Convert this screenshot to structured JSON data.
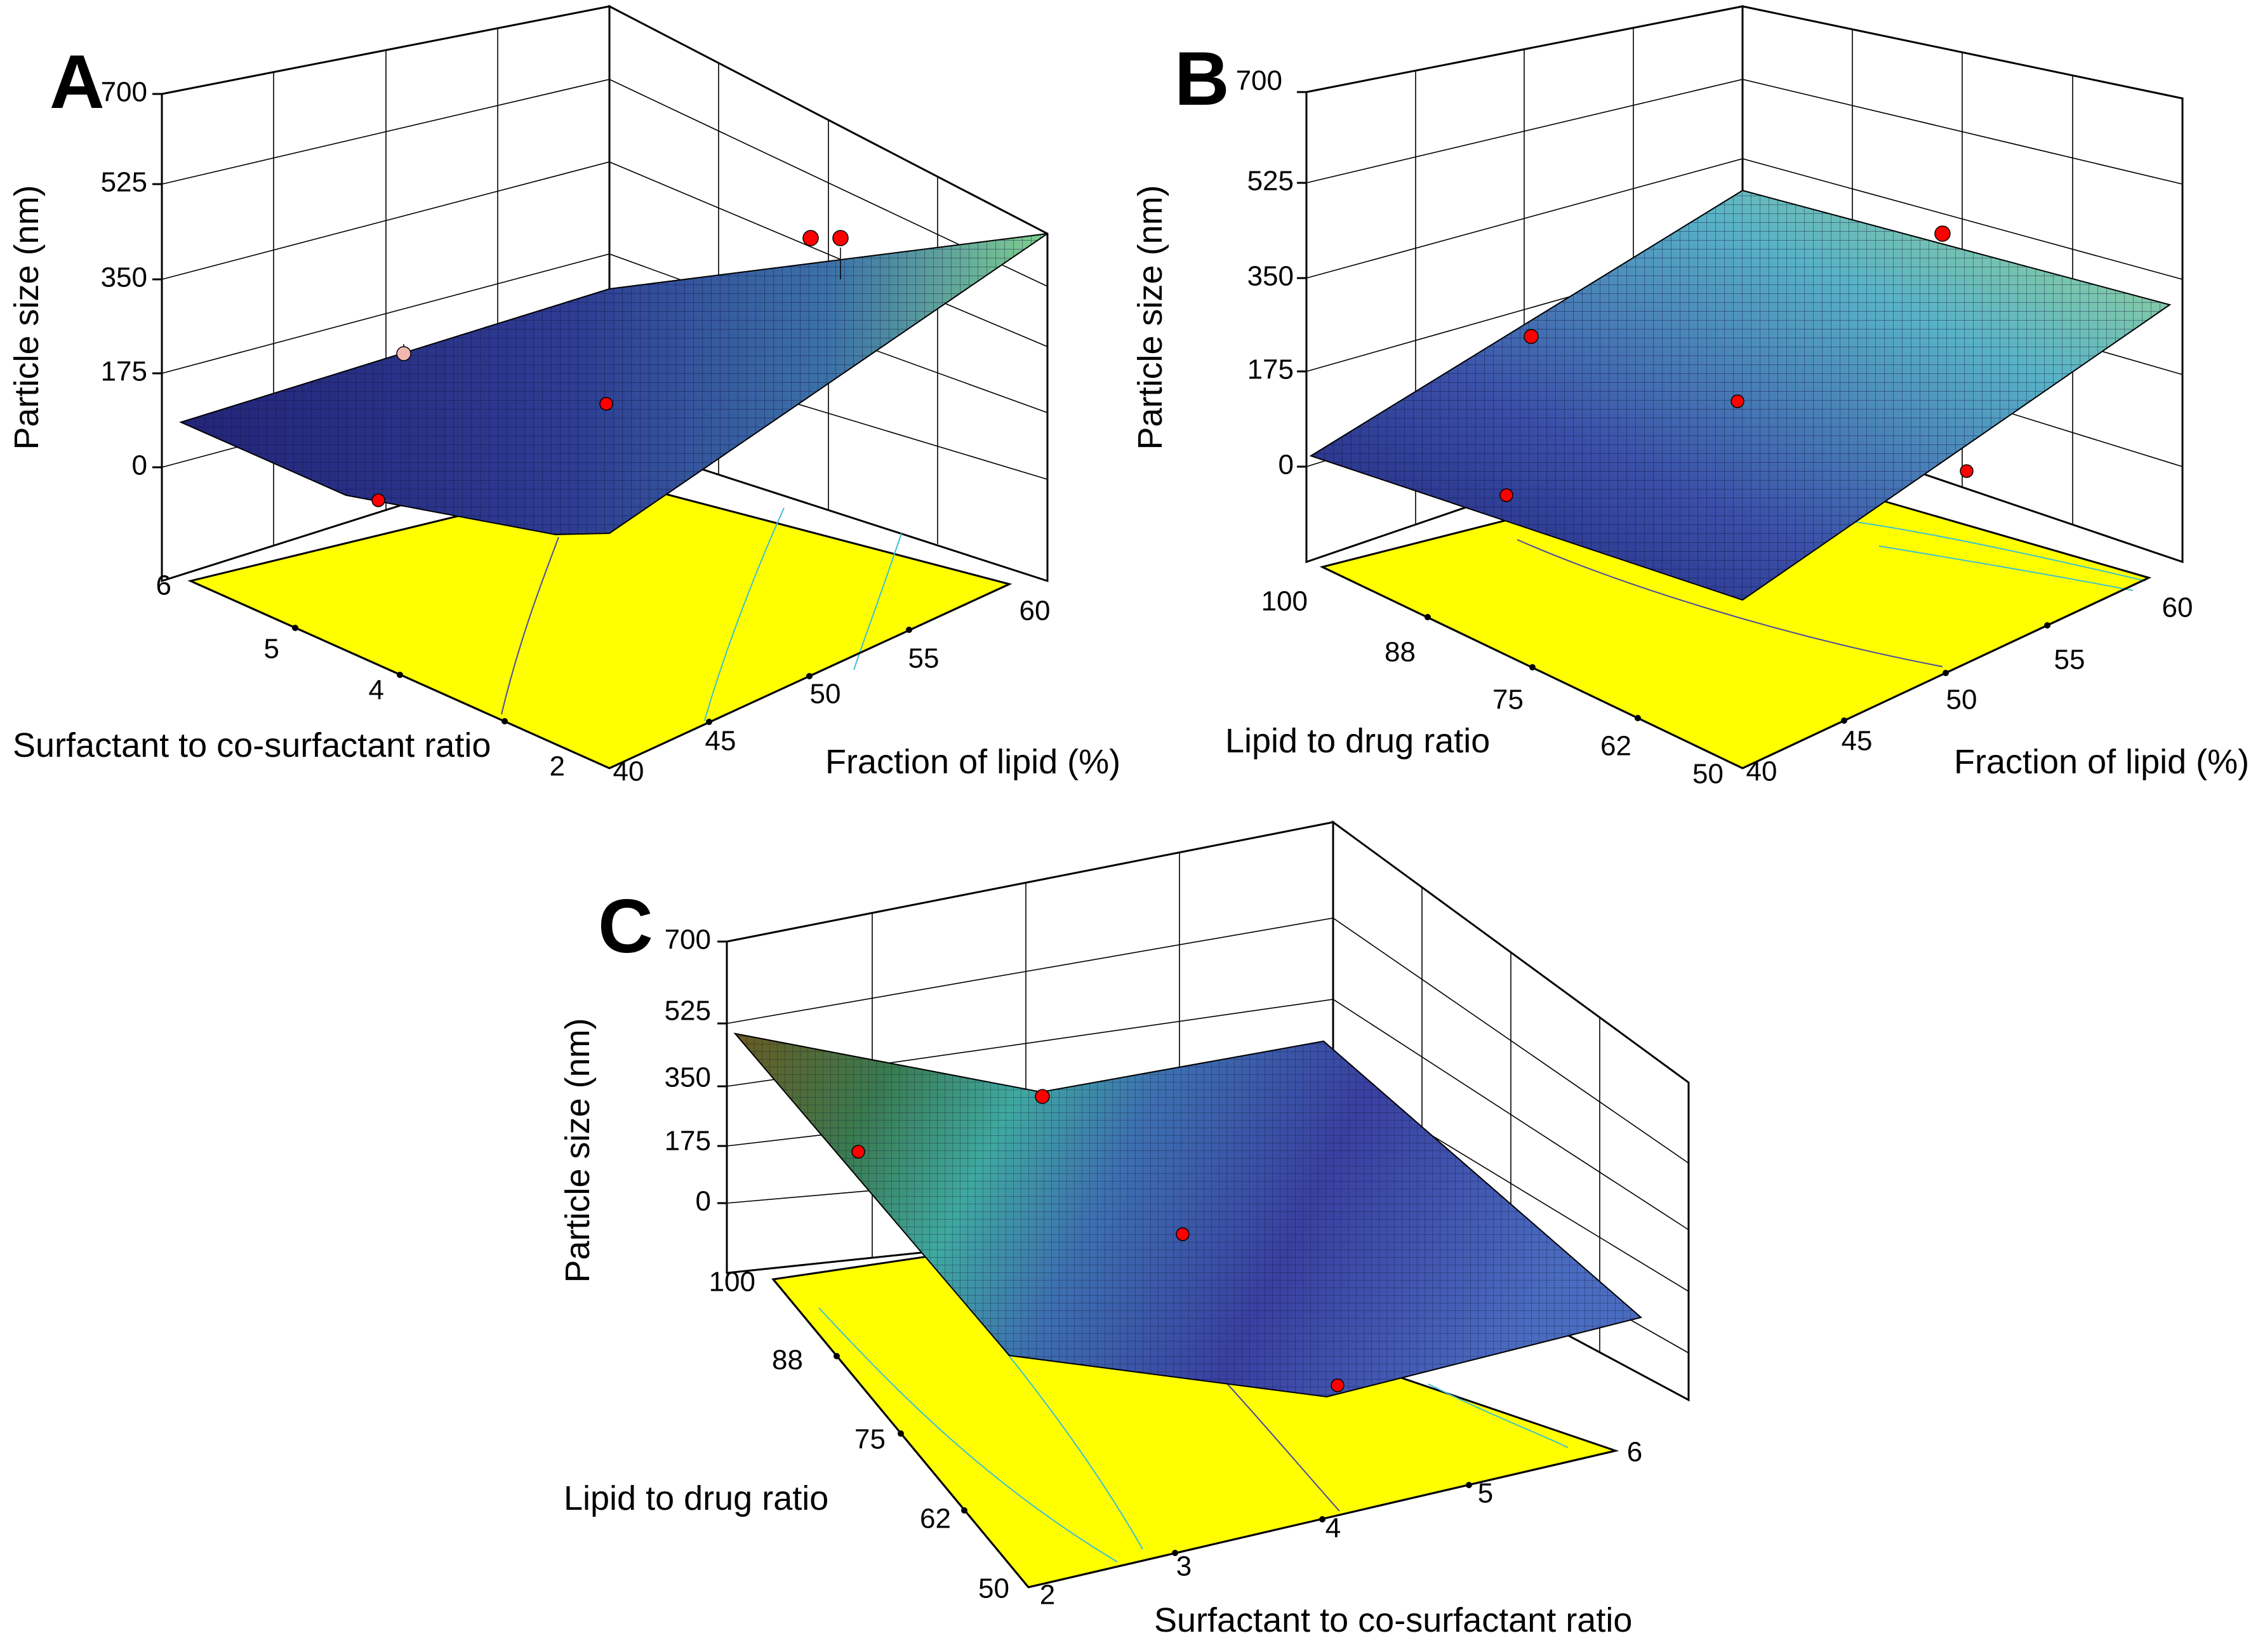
{
  "figure": {
    "panels": [
      {
        "label": "A",
        "zlabel": "Particle size (nm)",
        "zticks": [
          "0",
          "175",
          "350",
          "525",
          "700"
        ],
        "xlabel": "Fraction of lipid (%)",
        "xticks": [
          "40",
          "45",
          "50",
          "55",
          "60"
        ],
        "ylabel": "Surfactant to co-surfactant ratio",
        "yticks": [
          "2",
          "4",
          "5",
          "6"
        ]
      },
      {
        "label": "B",
        "zlabel": "Particle size (nm)",
        "zticks": [
          "0",
          "175",
          "350",
          "525",
          "700"
        ],
        "xlabel": "Fraction of lipid (%)",
        "xticks": [
          "40",
          "45",
          "50",
          "55",
          "60"
        ],
        "ylabel": "Lipid to drug ratio",
        "yticks": [
          "50",
          "62",
          "75",
          "88",
          "100"
        ]
      },
      {
        "label": "C",
        "zlabel": "Particle size (nm)",
        "zticks": [
          "0",
          "175",
          "350",
          "525",
          "700"
        ],
        "xlabel": "Surfactant to co-surfactant ratio",
        "xticks": [
          "2",
          "3",
          "4",
          "5",
          "6"
        ],
        "ylabel": "Lipid to drug ratio",
        "yticks": [
          "50",
          "62",
          "75",
          "88",
          "100"
        ]
      }
    ]
  },
  "chart_data": [
    {
      "type": "surface",
      "panel": "A",
      "title": "",
      "xlabel": "Fraction of lipid (%)",
      "ylabel": "Surfactant to co-surfactant ratio",
      "zlabel": "Particle size (nm)",
      "xlim": [
        40,
        60
      ],
      "ylim": [
        2,
        6
      ],
      "zlim": [
        0,
        700
      ],
      "surface_corners": [
        {
          "x": 40,
          "y": 6,
          "z": 90
        },
        {
          "x": 40,
          "y": 2,
          "z": 15
        },
        {
          "x": 60,
          "y": 2,
          "z": 460
        },
        {
          "x": 60,
          "y": 6,
          "z": 210
        }
      ],
      "design_points": [
        {
          "x": 40,
          "y": 4,
          "z": 15
        },
        {
          "x": 50,
          "y": 4,
          "z": 120
        },
        {
          "x": 45,
          "y": 6,
          "z": 210
        },
        {
          "x": 55,
          "y": 6,
          "z": 440
        },
        {
          "x": 60,
          "y": 6,
          "z": 440
        }
      ],
      "colormap": [
        "#1a1a6e",
        "#3a4fa8",
        "#5aa0c0",
        "#8fd08a"
      ],
      "floor_color": "#ffff00",
      "grid": true
    },
    {
      "type": "surface",
      "panel": "B",
      "title": "",
      "xlabel": "Fraction of lipid (%)",
      "ylabel": "Lipid to drug ratio",
      "zlabel": "Particle size (nm)",
      "xlim": [
        40,
        60
      ],
      "ylim": [
        50,
        100
      ],
      "zlim": [
        0,
        700
      ],
      "surface_corners": [
        {
          "x": 40,
          "y": 100,
          "z": 50
        },
        {
          "x": 40,
          "y": 50,
          "z": 20
        },
        {
          "x": 60,
          "y": 50,
          "z": 290
        },
        {
          "x": 60,
          "y": 100,
          "z": 520
        }
      ],
      "design_points": [
        {
          "x": 40,
          "y": 75,
          "z": 10
        },
        {
          "x": 50,
          "y": 75,
          "z": 120
        },
        {
          "x": 60,
          "y": 75,
          "z": 10
        },
        {
          "x": 45,
          "y": 100,
          "z": 230
        },
        {
          "x": 55,
          "y": 100,
          "z": 430
        }
      ],
      "colormap": [
        "#1a1a6e",
        "#3a4fa8",
        "#5ab0c8",
        "#9ad890"
      ],
      "floor_color": "#ffff00",
      "grid": true
    },
    {
      "type": "surface",
      "panel": "C",
      "title": "",
      "xlabel": "Surfactant to co-surfactant ratio",
      "ylabel": "Lipid to drug ratio",
      "zlabel": "Particle size (nm)",
      "xlim": [
        2,
        6
      ],
      "ylim": [
        50,
        100
      ],
      "zlim": [
        0,
        700
      ],
      "surface_corners": [
        {
          "x": 2,
          "y": 100,
          "z": 460
        },
        {
          "x": 2,
          "y": 50,
          "z": 20
        },
        {
          "x": 6,
          "y": 50,
          "z": 20
        },
        {
          "x": 6,
          "y": 100,
          "z": 180
        }
      ],
      "design_points": [
        {
          "x": 2,
          "y": 88,
          "z": 175
        },
        {
          "x": 3,
          "y": 100,
          "z": 300
        },
        {
          "x": 4,
          "y": 75,
          "z": 100
        },
        {
          "x": 4,
          "y": 50,
          "z": 10
        }
      ],
      "colormap": [
        "#6b5a1a",
        "#2f8a6a",
        "#4fb8c8",
        "#4a55b0",
        "#22227a"
      ],
      "floor_color": "#ffff00",
      "grid": true
    }
  ]
}
